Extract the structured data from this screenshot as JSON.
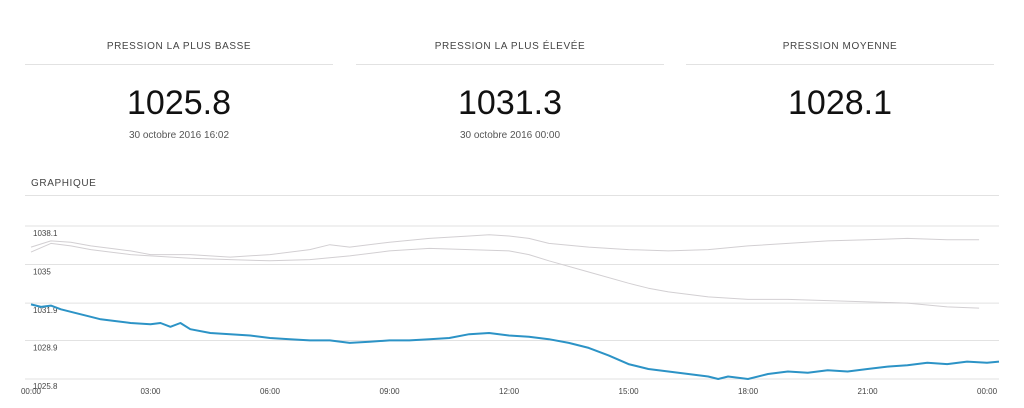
{
  "stats": [
    {
      "label": "PRESSION LA PLUS BASSE",
      "value": "1025.8",
      "date": "30 octobre 2016 16:02"
    },
    {
      "label": "PRESSION LA PLUS ÉLEVÉE",
      "value": "1031.3",
      "date": "30 octobre 2016 00:00"
    },
    {
      "label": "PRESSION MOYENNE",
      "value": "1028.1",
      "date": ""
    }
  ],
  "graph_title": "GRAPHIQUE",
  "colors": {
    "main": "#2c93c6",
    "reference": "#d2cfd2",
    "grid": "#e2e2e2",
    "text": "#444444"
  },
  "chart_data": {
    "type": "line",
    "title": "",
    "xlabel": "",
    "ylabel": "",
    "xlim": [
      0,
      24.3
    ],
    "ylim": [
      1025.8,
      1038.1
    ],
    "ygrid": [
      1038.1,
      1035,
      1031.9,
      1028.9,
      1025.8
    ],
    "ytick_labels": [
      "1038.1",
      "1035",
      "1031.9",
      "1028.9",
      "1025.8"
    ],
    "xticks": [
      0,
      3,
      6,
      9,
      12,
      15,
      18,
      21,
      24
    ],
    "xtick_labels": [
      "00:00",
      "03:00",
      "06:00",
      "09:00",
      "12:00",
      "15:00",
      "18:00",
      "21:00",
      "00:00"
    ],
    "grid": true,
    "legend": "none",
    "series": [
      {
        "role": "reference-upper",
        "x": [
          0,
          0.5,
          1,
          1.5,
          2,
          2.5,
          3,
          4,
          5,
          6,
          7,
          7.5,
          8,
          9,
          10,
          11,
          11.5,
          12,
          12.5,
          13,
          14,
          15,
          16,
          17,
          18,
          19,
          20,
          21,
          22,
          23,
          23.8
        ],
        "y": [
          1036.4,
          1036.9,
          1036.8,
          1036.5,
          1036.3,
          1036.1,
          1035.8,
          1035.8,
          1035.6,
          1035.8,
          1036.2,
          1036.6,
          1036.4,
          1036.8,
          1037.1,
          1037.3,
          1037.4,
          1037.3,
          1037.1,
          1036.7,
          1036.4,
          1036.2,
          1036.1,
          1036.2,
          1036.5,
          1036.7,
          1036.9,
          1037.0,
          1037.1,
          1037.0,
          1037.0
        ]
      },
      {
        "role": "reference-lower",
        "x": [
          0,
          0.5,
          1,
          1.5,
          2,
          2.5,
          3,
          4,
          5,
          6,
          7,
          8,
          9,
          10,
          11,
          12,
          12.5,
          13,
          14,
          15,
          15.5,
          16,
          16.5,
          17,
          18,
          19,
          20,
          21,
          22,
          23,
          23.8
        ],
        "y": [
          1036.0,
          1036.7,
          1036.5,
          1036.2,
          1036.0,
          1035.8,
          1035.7,
          1035.5,
          1035.4,
          1035.3,
          1035.4,
          1035.7,
          1036.1,
          1036.3,
          1036.2,
          1036.1,
          1035.8,
          1035.3,
          1034.4,
          1033.5,
          1033.1,
          1032.8,
          1032.6,
          1032.4,
          1032.2,
          1032.2,
          1032.1,
          1032.0,
          1031.9,
          1031.6,
          1031.5
        ]
      },
      {
        "role": "main",
        "x": [
          0,
          0.25,
          0.5,
          0.75,
          1,
          1.25,
          1.5,
          1.75,
          2,
          2.5,
          3,
          3.25,
          3.5,
          3.75,
          4,
          4.5,
          5,
          5.5,
          6,
          6.5,
          7,
          7.5,
          8,
          8.5,
          9,
          9.5,
          10,
          10.5,
          11,
          11.5,
          12,
          12.5,
          13,
          13.5,
          14,
          14.5,
          15,
          15.5,
          16,
          16.5,
          17,
          17.25,
          17.5,
          18,
          18.5,
          19,
          19.5,
          20,
          20.5,
          21,
          21.5,
          22,
          22.5,
          23,
          23.5,
          24,
          24.3
        ],
        "y": [
          1031.8,
          1031.6,
          1031.7,
          1031.4,
          1031.2,
          1031.0,
          1030.8,
          1030.6,
          1030.5,
          1030.3,
          1030.2,
          1030.3,
          1030.0,
          1030.3,
          1029.8,
          1029.5,
          1029.4,
          1029.3,
          1029.1,
          1029.0,
          1028.9,
          1028.9,
          1028.7,
          1028.8,
          1028.9,
          1028.9,
          1029.0,
          1029.1,
          1029.4,
          1029.5,
          1029.3,
          1029.2,
          1029.0,
          1028.7,
          1028.3,
          1027.7,
          1027.0,
          1026.6,
          1026.4,
          1026.2,
          1026.0,
          1025.8,
          1026.0,
          1025.8,
          1026.2,
          1026.4,
          1026.3,
          1026.5,
          1026.4,
          1026.6,
          1026.8,
          1026.9,
          1027.1,
          1027.0,
          1027.2,
          1027.1,
          1027.2
        ]
      }
    ]
  }
}
